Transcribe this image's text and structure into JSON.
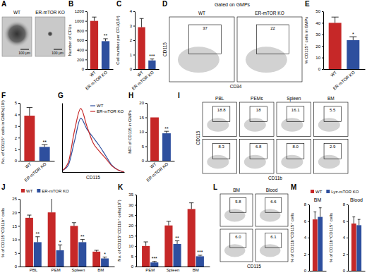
{
  "chart_data": [
    {
      "type": "image",
      "panel": "A",
      "labels": [
        "WT",
        "ER-mTOR KO"
      ],
      "scale_bar": "100 μm"
    },
    {
      "type": "bar",
      "panel": "B",
      "ylabel": "Number of CFUs",
      "categories": [
        "WT",
        "ER-mTOR KO"
      ],
      "values": [
        1000,
        580
      ],
      "errors": [
        80,
        50
      ],
      "annotations": [
        null,
        "**"
      ],
      "colors": [
        "#c62828",
        "#2e4f9e"
      ],
      "ylim": [
        0,
        1200
      ],
      "yticks": [
        0,
        200,
        400,
        600,
        800,
        1000,
        1200
      ]
    },
    {
      "type": "bar",
      "panel": "C",
      "ylabel": "Cell number per CFU(10³)",
      "categories": [
        "WT",
        "ER-mTOR KO"
      ],
      "values": [
        2.9,
        0.6
      ],
      "errors": [
        0.6,
        0.1
      ],
      "annotations": [
        null,
        "***"
      ],
      "colors": [
        "#c62828",
        "#2e4f9e"
      ],
      "ylim": [
        0,
        4
      ],
      "yticks": [
        0,
        1,
        2,
        3,
        4
      ]
    },
    {
      "type": "flow",
      "panel": "D",
      "title": "Gated on GMPs",
      "columns": [
        "WT",
        "ER-mTOR KO"
      ],
      "values": [
        [
          37,
          22
        ]
      ],
      "xlabel": "CD34",
      "ylabel": "CD115"
    },
    {
      "type": "bar",
      "panel": "E",
      "ylabel": "% CD115⁺ cells in GMPs",
      "categories": [
        "WT",
        "ER-mTOR KO"
      ],
      "values": [
        40,
        25
      ],
      "errors": [
        5,
        3
      ],
      "annotations": [
        null,
        "*"
      ],
      "colors": [
        "#c62828",
        "#2e4f9e"
      ],
      "ylim": [
        0,
        50
      ],
      "yticks": [
        0,
        10,
        20,
        30,
        40,
        50
      ]
    },
    {
      "type": "bar",
      "panel": "F",
      "ylabel": "No. of CD115⁺ cells in GMPs(10³)",
      "categories": [
        "WT",
        "ER-mTOR KO"
      ],
      "values": [
        3.9,
        1.2
      ],
      "errors": [
        0.7,
        0.2
      ],
      "annotations": [
        null,
        "**"
      ],
      "colors": [
        "#c62828",
        "#2e4f9e"
      ],
      "ylim": [
        0,
        5
      ],
      "yticks": [
        0,
        1,
        2,
        3,
        4,
        5
      ]
    },
    {
      "type": "line",
      "panel": "G",
      "xlabel": "CD115",
      "x": [
        0,
        1,
        2,
        3,
        4,
        5,
        6,
        7,
        8,
        9,
        10
      ],
      "xlim": [
        0,
        10
      ],
      "ylim": [
        0,
        100
      ],
      "tick_labels": false,
      "legend": "top-right",
      "series": [
        {
          "name": "WT",
          "color": "#2e4f9e",
          "values": [
            2,
            10,
            45,
            78,
            62,
            50,
            38,
            24,
            10,
            3,
            0
          ]
        },
        {
          "name": "ER-mTOR KO",
          "color": "#c62828",
          "values": [
            2,
            14,
            60,
            92,
            66,
            42,
            30,
            20,
            9,
            3,
            0
          ]
        }
      ]
    },
    {
      "type": "bar",
      "panel": "H",
      "ylabel": "MFI of CD115 in GMPs",
      "categories": [
        "WT",
        "ER-mTOR KO"
      ],
      "values": [
        15,
        9.5
      ],
      "errors": [
        null,
        0.7
      ],
      "annotations": [
        null,
        "**"
      ],
      "colors": [
        "#c62828",
        "#2e4f9e"
      ],
      "ylim": [
        0,
        20
      ],
      "yticks": [
        0,
        5,
        10,
        15,
        20
      ]
    },
    {
      "type": "flow",
      "panel": "I",
      "columns": [
        "PBL",
        "PEMs",
        "Spleen",
        "BM"
      ],
      "values": [
        [
          18.8,
          18,
          16.1,
          5.5
        ],
        [
          8.3,
          6.8,
          8,
          2.9
        ]
      ],
      "value_labels": [
        [
          "18.8",
          "18",
          "16.1",
          "5.5"
        ],
        [
          "8.3",
          "6.8",
          "8.0",
          "2.9"
        ]
      ],
      "xlabel": "CD11b",
      "ylabel": "CD115"
    },
    {
      "type": "bar",
      "panel": "J",
      "ylabel": "% of CD115⁺CD11b⁺ cells",
      "categories": [
        "PBL",
        "PEM",
        "Spleen",
        "BM"
      ],
      "legend": "top",
      "ylim": [
        0,
        25
      ],
      "yticks": [
        0,
        5,
        10,
        15,
        20,
        25
      ],
      "series": [
        {
          "name": "WT",
          "color": "#c62828",
          "values": [
            18,
            20,
            15,
            5.5
          ],
          "errors": [
            1,
            7,
            1.2,
            0.5
          ]
        },
        {
          "name": "ER-mTOR KO",
          "color": "#2e4f9e",
          "values": [
            9,
            6,
            9,
            3
          ],
          "errors": [
            2,
            2,
            1,
            0.5
          ],
          "annotations": [
            "**",
            "*",
            "**",
            "*"
          ]
        }
      ]
    },
    {
      "type": "bar",
      "panel": "K",
      "ylabel": "No. of CD115⁺CD11b⁺ cells(10⁵)",
      "categories": [
        "PEM",
        "Spleen",
        "BM"
      ],
      "ylim": [
        0,
        35
      ],
      "yticks": [
        0,
        5,
        10,
        15,
        20,
        25,
        30,
        35
      ],
      "series": [
        {
          "color": "#c62828",
          "values": [
            10,
            20,
            28
          ],
          "errors": [
            2,
            2,
            3
          ]
        },
        {
          "color": "#2e4f9e",
          "values": [
            2,
            11,
            5
          ],
          "errors": [
            0.5,
            1.5,
            0.5
          ],
          "annotations": [
            "***",
            "**",
            "***"
          ]
        }
      ]
    },
    {
      "type": "flow",
      "panel": "L",
      "columns": [
        "BM",
        "Blood"
      ],
      "values": [
        [
          5.8,
          6.6
        ],
        [
          6,
          6.1
        ]
      ],
      "value_labels": [
        [
          "5.8",
          "6.6"
        ],
        [
          "6.0",
          "6.1"
        ]
      ],
      "xlabel": "CD115"
    },
    {
      "type": "bar",
      "panel": "M",
      "title": "BM",
      "ylabel": "% of CD11b⁺CD115⁺ cells",
      "categories": [
        null
      ],
      "legend": "top",
      "ylim": [
        0,
        8
      ],
      "yticks": [
        0,
        2,
        4,
        6,
        8
      ],
      "series": [
        {
          "name": "WT",
          "color": "#c62828",
          "values": [
            6.2
          ],
          "errors": [
            0.9
          ]
        },
        {
          "name": "Lyz-mTOR KO",
          "color": "#2e4f9e",
          "values": [
            6.5
          ],
          "errors": [
            1.1
          ]
        }
      ]
    },
    {
      "type": "bar",
      "title": "Blood",
      "ylabel": "% of CD11b⁺CD115⁺ cells",
      "categories": [
        null
      ],
      "ylim": [
        0,
        8
      ],
      "yticks": [
        0,
        2,
        4,
        6,
        8
      ],
      "series": [
        {
          "color": "#c62828",
          "values": [
            5.7
          ],
          "errors": [
            0.8
          ]
        },
        {
          "color": "#2e4f9e",
          "values": [
            5.5
          ],
          "errors": [
            0.7
          ]
        }
      ]
    }
  ]
}
